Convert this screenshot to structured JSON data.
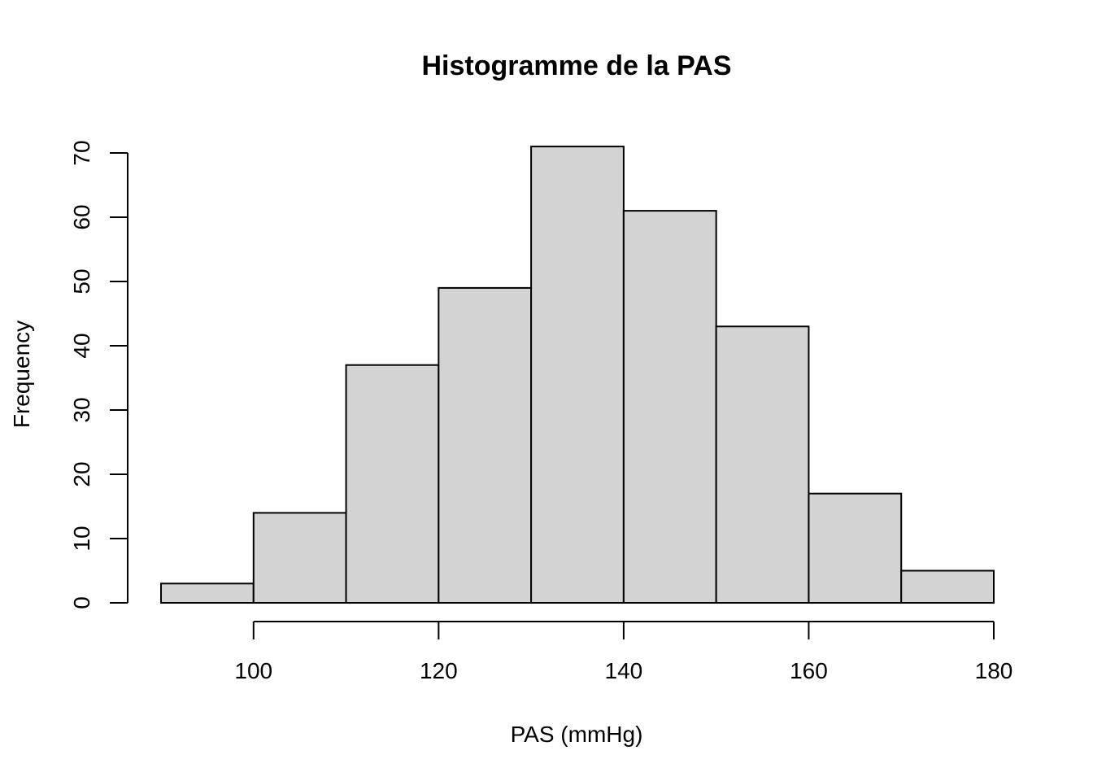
{
  "chart_data": {
    "type": "bar",
    "title": "Histogramme de la PAS",
    "xlabel": "PAS (mmHg)",
    "ylabel": "Frequency",
    "bins": [
      {
        "start": 90,
        "end": 100,
        "value": 3
      },
      {
        "start": 100,
        "end": 110,
        "value": 14
      },
      {
        "start": 110,
        "end": 120,
        "value": 37
      },
      {
        "start": 120,
        "end": 130,
        "value": 49
      },
      {
        "start": 130,
        "end": 140,
        "value": 71
      },
      {
        "start": 140,
        "end": 150,
        "value": 61
      },
      {
        "start": 150,
        "end": 160,
        "value": 43
      },
      {
        "start": 160,
        "end": 170,
        "value": 17
      },
      {
        "start": 170,
        "end": 180,
        "value": 5
      }
    ],
    "x_ticks": [
      100,
      120,
      140,
      160,
      180
    ],
    "y_ticks": [
      0,
      10,
      20,
      30,
      40,
      50,
      60,
      70
    ],
    "xlim": [
      90,
      180
    ],
    "ylim": [
      0,
      70
    ],
    "grid": false,
    "bar_color": "#d3d3d3",
    "edge_color": "#000000"
  }
}
